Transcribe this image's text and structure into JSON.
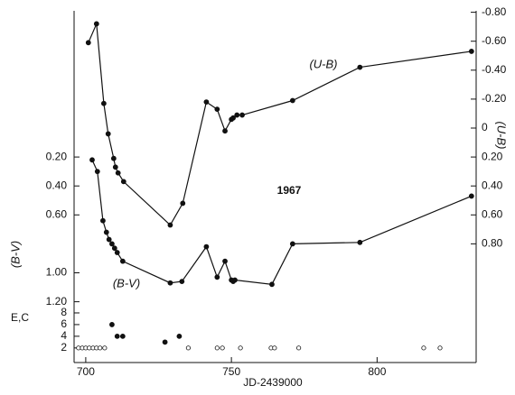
{
  "chart_data": [
    {
      "type": "line",
      "xlabel": "JD-2439000",
      "ylabel": "(B-V)",
      "y2label": "(U-B)",
      "annotation": "1967",
      "xlim": [
        696,
        834
      ],
      "xticks": [
        700,
        750,
        800
      ],
      "ylim": [
        1.62,
        -0.81
      ],
      "yticks": [
        {
          "value": 0.2,
          "label": "0.20"
        },
        {
          "value": 0.4,
          "label": "0.40"
        },
        {
          "value": 0.6,
          "label": "0.60"
        },
        {
          "value": 1.0,
          "label": "1.00"
        },
        {
          "value": 1.2,
          "label": "1.20"
        }
      ],
      "y2lim": [
        1.62,
        -0.81
      ],
      "y2ticks": [
        {
          "value": -0.8,
          "label": "-0.80"
        },
        {
          "value": -0.6,
          "label": "-0.60"
        },
        {
          "value": -0.4,
          "label": "-0.40"
        },
        {
          "value": -0.2,
          "label": "-0.20"
        },
        0,
        {
          "value": 0.2,
          "label": "0.20"
        },
        {
          "value": 0.4,
          "label": "0.40"
        },
        {
          "value": 0.6,
          "label": "0.60"
        },
        {
          "value": 0.8,
          "label": "0.80"
        }
      ],
      "series": [
        {
          "name": "(U-B)",
          "color": "#111",
          "axis": "y2",
          "x": [
            700.9,
            703.7,
            706.2,
            707.7,
            709.6,
            710.2,
            711.1,
            713.0,
            729.0,
            733.3,
            741.4,
            745.1,
            747.8,
            750.0,
            750.6,
            751.9,
            753.7,
            771.0,
            794.1,
            832.4
          ],
          "values": [
            -0.59,
            -0.72,
            -0.17,
            0.04,
            0.21,
            0.27,
            0.31,
            0.37,
            0.67,
            0.52,
            -0.18,
            -0.13,
            0.02,
            -0.06,
            -0.07,
            -0.09,
            -0.09,
            -0.19,
            -0.42,
            -0.53
          ]
        },
        {
          "name": "(B-V)",
          "color": "#111",
          "axis": "y",
          "x": [
            702.2,
            704.0,
            705.9,
            707.1,
            708.0,
            709.0,
            709.9,
            710.8,
            712.7,
            729.0,
            733.0,
            741.4,
            745.1,
            747.8,
            750.0,
            750.6,
            751.2,
            763.9,
            771.0,
            794.1,
            832.4
          ],
          "values": [
            0.22,
            0.3,
            0.64,
            0.72,
            0.77,
            0.8,
            0.83,
            0.86,
            0.92,
            1.07,
            1.06,
            0.82,
            1.03,
            0.92,
            1.05,
            1.06,
            1.05,
            1.08,
            0.8,
            0.79,
            0.47
          ]
        }
      ]
    },
    {
      "type": "scatter",
      "ylabel": "E,C",
      "xlim": [
        696,
        834
      ],
      "ylim": [
        -0.5,
        9
      ],
      "yticks": [
        2,
        4,
        6,
        8
      ],
      "series": [
        {
          "color": "#111",
          "marker": "filled",
          "x": [
            709.0,
            710.8,
            712.7,
            727.2,
            732.1
          ],
          "values": [
            6,
            4,
            4,
            3,
            4
          ]
        },
        {
          "color": "#111",
          "marker": "open",
          "x": [
            697.5,
            698.8,
            700.0,
            701.2,
            702.5,
            703.7,
            704.9,
            706.5,
            735.2,
            745.1,
            746.9,
            753.1,
            763.6,
            764.8,
            773.1,
            816.0,
            821.6
          ],
          "values": [
            2,
            2,
            2,
            2,
            2,
            2,
            2,
            2,
            2,
            2,
            2,
            2,
            2,
            2,
            2,
            2,
            2
          ]
        }
      ]
    }
  ]
}
